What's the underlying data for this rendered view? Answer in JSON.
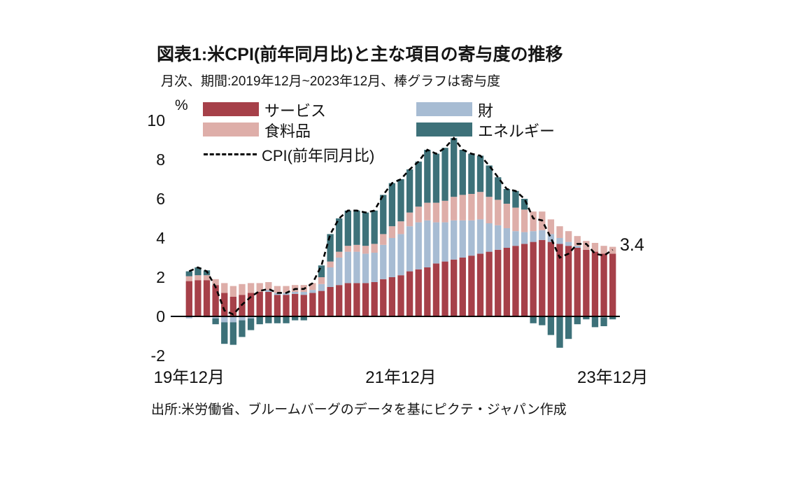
{
  "chart": {
    "title": "図表1:米CPI(前年同月比)と主な項目の寄与度の推移",
    "subtitle": "月次、期間:2019年12月~2023年12月、棒グラフは寄与度",
    "unit_label": "%",
    "end_label": "3.4",
    "source": "出所:米労働省、ブルームバーグのデータを基にピクテ・ジャパン作成"
  },
  "chart_data": {
    "type": "bar",
    "subtype": "stacked-bars-with-line",
    "title": "図表1:米CPI(前年同月比)と主な項目の寄与度の推移",
    "xlabel": "",
    "ylabel": "%",
    "ylim": [
      -2,
      10
    ],
    "yticks": [
      10,
      8,
      6,
      4,
      2,
      0,
      -2
    ],
    "grid": false,
    "legend_position": "top-left-inside",
    "x": [
      "2019-12",
      "2020-01",
      "2020-02",
      "2020-03",
      "2020-04",
      "2020-05",
      "2020-06",
      "2020-07",
      "2020-08",
      "2020-09",
      "2020-10",
      "2020-11",
      "2020-12",
      "2021-01",
      "2021-02",
      "2021-03",
      "2021-04",
      "2021-05",
      "2021-06",
      "2021-07",
      "2021-08",
      "2021-09",
      "2021-10",
      "2021-11",
      "2021-12",
      "2022-01",
      "2022-02",
      "2022-03",
      "2022-04",
      "2022-05",
      "2022-06",
      "2022-07",
      "2022-08",
      "2022-09",
      "2022-10",
      "2022-11",
      "2022-12",
      "2023-01",
      "2023-02",
      "2023-03",
      "2023-04",
      "2023-05",
      "2023-06",
      "2023-07",
      "2023-08",
      "2023-09",
      "2023-10",
      "2023-11",
      "2023-12"
    ],
    "x_tick_labels": [
      {
        "index": 0,
        "label": "19年12月"
      },
      {
        "index": 24,
        "label": "21年12月"
      },
      {
        "index": 48,
        "label": "23年12月"
      }
    ],
    "series": [
      {
        "name": "サービス",
        "color": "#a64049",
        "values": [
          1.8,
          1.85,
          1.85,
          1.6,
          1.2,
          1.0,
          1.1,
          1.2,
          1.25,
          1.25,
          1.1,
          1.1,
          1.15,
          1.1,
          1.2,
          1.3,
          1.5,
          1.6,
          1.7,
          1.7,
          1.7,
          1.75,
          1.9,
          2.0,
          2.1,
          2.3,
          2.4,
          2.5,
          2.7,
          2.8,
          2.9,
          3.0,
          3.1,
          3.2,
          3.3,
          3.4,
          3.5,
          3.6,
          3.7,
          3.8,
          3.9,
          3.8,
          3.7,
          3.6,
          3.5,
          3.4,
          3.3,
          3.2,
          3.2
        ]
      },
      {
        "name": "財",
        "color": "#a7bcd3",
        "values": [
          -0.1,
          0.0,
          -0.05,
          -0.1,
          -0.3,
          -0.3,
          -0.2,
          -0.1,
          0.0,
          0.1,
          0.1,
          0.1,
          0.1,
          0.15,
          0.15,
          0.35,
          1.0,
          1.4,
          1.6,
          1.6,
          1.5,
          1.5,
          1.75,
          2.0,
          2.1,
          2.3,
          2.4,
          2.4,
          2.1,
          2.0,
          2.0,
          1.9,
          1.8,
          1.75,
          1.45,
          1.25,
          1.0,
          0.75,
          0.6,
          0.55,
          0.5,
          0.4,
          0.3,
          0.2,
          0.1,
          0.0,
          0.0,
          -0.05,
          0.0
        ]
      },
      {
        "name": "食料品",
        "color": "#deaea9",
        "values": [
          0.25,
          0.25,
          0.25,
          0.3,
          0.5,
          0.55,
          0.55,
          0.5,
          0.45,
          0.4,
          0.35,
          0.35,
          0.35,
          0.35,
          0.35,
          0.35,
          0.3,
          0.3,
          0.3,
          0.35,
          0.4,
          0.45,
          0.55,
          0.6,
          0.65,
          0.7,
          0.8,
          0.9,
          1.0,
          1.1,
          1.2,
          1.3,
          1.35,
          1.4,
          1.35,
          1.3,
          1.25,
          1.2,
          1.15,
          1.0,
          0.95,
          0.75,
          0.6,
          0.55,
          0.5,
          0.45,
          0.45,
          0.4,
          0.35
        ]
      },
      {
        "name": "エネルギー",
        "color": "#3d7179",
        "values": [
          0.25,
          0.4,
          0.25,
          -0.3,
          -1.1,
          -1.15,
          -0.85,
          -0.6,
          -0.4,
          -0.35,
          -0.35,
          -0.35,
          -0.2,
          -0.2,
          0.0,
          0.6,
          1.4,
          1.7,
          1.8,
          1.75,
          1.7,
          1.7,
          2.0,
          2.2,
          2.15,
          2.2,
          2.3,
          2.7,
          2.5,
          2.7,
          3.0,
          2.3,
          2.05,
          1.85,
          1.6,
          1.15,
          0.75,
          0.85,
          0.55,
          -0.35,
          -0.45,
          -0.95,
          -1.6,
          -1.15,
          -0.4,
          -0.15,
          -0.55,
          -0.45,
          -0.15
        ]
      }
    ],
    "line": {
      "name": "CPI(前年同月比)",
      "color": "#000000",
      "dashed": true,
      "values": [
        2.3,
        2.5,
        2.3,
        1.5,
        0.3,
        0.1,
        0.6,
        1.0,
        1.3,
        1.4,
        1.2,
        1.2,
        1.4,
        1.4,
        1.7,
        2.6,
        4.2,
        5.0,
        5.4,
        5.4,
        5.3,
        5.4,
        6.2,
        6.8,
        7.0,
        7.5,
        7.9,
        8.5,
        8.3,
        8.6,
        9.1,
        8.5,
        8.3,
        8.2,
        7.7,
        7.1,
        6.5,
        6.4,
        6.0,
        5.0,
        4.9,
        4.0,
        3.0,
        3.2,
        3.7,
        3.7,
        3.2,
        3.1,
        3.4
      ]
    },
    "end_annotation": {
      "value": 3.4,
      "label": "3.4"
    }
  }
}
